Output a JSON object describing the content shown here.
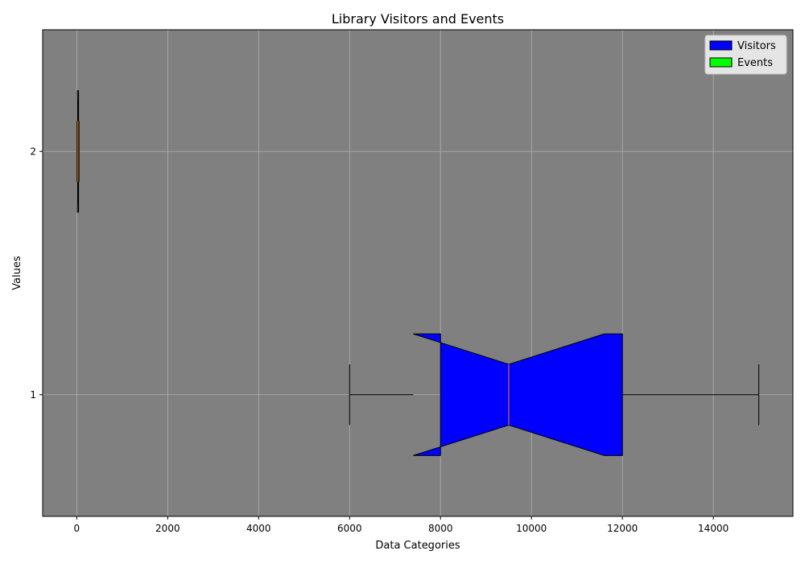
{
  "chart_data": {
    "type": "boxplot",
    "orientation": "horizontal",
    "notched": true,
    "title": "Library Visitors and Events",
    "xlabel": "Data Categories",
    "ylabel": "Values",
    "xlim": [
      -750,
      15750
    ],
    "ylim": [
      0.5,
      2.5
    ],
    "x_ticks": [
      0,
      2000,
      4000,
      6000,
      8000,
      10000,
      12000,
      14000
    ],
    "y_ticks": [
      1,
      2
    ],
    "grid": true,
    "background_color": "#808080",
    "median_color": "#ff7f0e",
    "legend_position": "top-right",
    "series": [
      {
        "name": "Visitors",
        "position": 1,
        "color": "#0000ff",
        "whisker_low": 6000,
        "q1": 8000,
        "median": 9500,
        "q3": 12000,
        "whisker_high": 15000,
        "notch_low": 7400,
        "notch_high": 11600
      },
      {
        "name": "Events",
        "position": 2,
        "color": "#00ff00",
        "whisker_low": 5,
        "q1": 15,
        "median": 25,
        "q3": 40,
        "whisker_high": 50,
        "notch_low": 12,
        "notch_high": 38
      }
    ]
  }
}
